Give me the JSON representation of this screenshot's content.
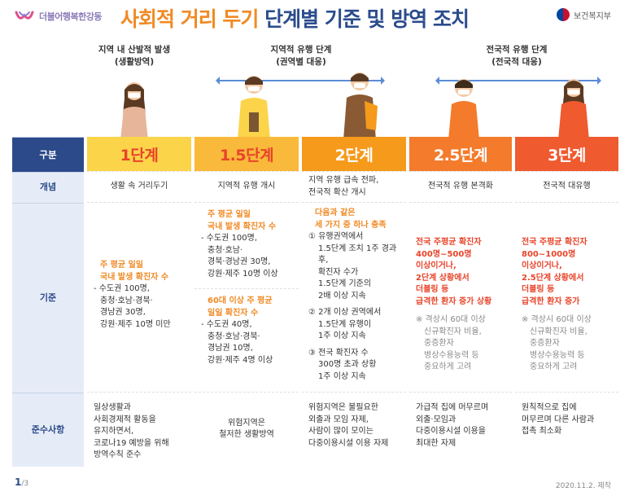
{
  "header": {
    "logo_text": "더불어행복한강동",
    "title_main": "사회적 거리 두기",
    "title_sub": "단계별 기준 및 방역 조치",
    "ministry": "보건복지부"
  },
  "phases": {
    "p1_line1": "지역 내 산발적 발생",
    "p1_line2": "(생활방역)",
    "p2_line1": "지역적 유행 단계",
    "p2_line2": "(권역별 대응)",
    "p3_line1": "전국적 유행 단계",
    "p3_line2": "(전국적 대응)"
  },
  "row_headers": {
    "corner": "구분",
    "concept": "개념",
    "criteria": "기준",
    "compliance": "준수사항"
  },
  "stages": [
    {
      "name": "1단계",
      "color": "#fbd44a",
      "concept": "생활 속 거리두기",
      "criteria": {
        "hl1": "주 평균 일일",
        "hl2": "국내 발생 확진자 수",
        "d1": "- 수도권 100명,",
        "d2": "충청·호남·경북·",
        "d3": "경남권 30명,",
        "d4": "강원·제주 10명 미만"
      },
      "compliance": [
        "일상생활과",
        "사회경제적 활동을",
        "유지하면서,",
        "코로나19 예방을 위해",
        "방역수칙 준수"
      ]
    },
    {
      "name": "1.5단계",
      "color": "#f9b93a",
      "concept": "지역적 유행 개시",
      "criteria": {
        "a_hl1": "주 평균 일일",
        "a_hl2": "국내 발생 확진자 수",
        "a_d1": "- 수도권 100명,",
        "a_d2": "충청·호남·",
        "a_d3": "경북·경남권 30명,",
        "a_d4": "강원·제주 10명 이상",
        "b_hl1": "60대 이상 주 평균",
        "b_hl2": "일일 확진자 수",
        "b_d1": "- 수도권 40명,",
        "b_d2": "충청·호남·경북·",
        "b_d3": "경남권 10명,",
        "b_d4": "강원·제주 4명 이상"
      },
      "compliance": [
        "위험지역은",
        "철저한 생활방역"
      ]
    },
    {
      "name": "2단계",
      "color": "#f59a1b",
      "concept_1": "지역 유행 급속 전파,",
      "concept_2": "전국적 확산 개시",
      "criteria": {
        "hl1": "다음과 같은",
        "hl2": "세 가지 중 하나 충족",
        "c1_1": "① 유행권역에서",
        "c1_2": "1.5단계 조치 1주 경과 후,",
        "c1_3": "확진자 수가",
        "c1_4": "1.5단계 기준의",
        "c1_5": "2배 이상 지속",
        "c2_1": "② 2개 이상 권역에서",
        "c2_2": "1.5단계 유행이",
        "c2_3": "1주 이상 지속",
        "c3_1": "③ 전국 확진자 수",
        "c3_2": "300명 초과 상황",
        "c3_3": "1주 이상 지속"
      },
      "compliance": [
        "위험지역은 불필요한",
        "외출과 모임 자제,",
        "사람이 많이 모이는",
        "다중이용시설 이용 자제"
      ]
    },
    {
      "name": "2.5단계",
      "color": "#f47b2b",
      "concept": "전국적 유행 본격화",
      "criteria": {
        "hl1": "전국 주평균 확진자",
        "hl2": "400명~500명",
        "hl3": "이상이거나,",
        "hl4": "2단계 상황에서",
        "hl5": "더블링 등",
        "hl6": "급격한 환자 증가 상황",
        "g1": "※ 격상시 60대 이상",
        "g2": "신규확진자 비율,",
        "g3": "중증환자",
        "g4": "병상수용능력 등",
        "g5": "중요하게 고려"
      },
      "compliance": [
        "가급적 집에 머무르며",
        "외출·모임과",
        "다중이용시설 이용을",
        "최대한 자제"
      ]
    },
    {
      "name": "3단계",
      "color": "#ef5a2f",
      "concept": "전국적 대유행",
      "criteria": {
        "hl1": "전국 주평균 확진자",
        "hl2": "800~1000명",
        "hl3": "이상이거나,",
        "hl4": "2.5단계 상황에서",
        "hl5": "더블링 등",
        "hl6": "급격한 환자 증가",
        "g1": "※ 격상시 60대 이상",
        "g2": "신규확진자 비율,",
        "g3": "중증환자",
        "g4": "병상수용능력 등",
        "g5": "중요하게 고려"
      },
      "compliance": [
        "원칙적으로 집에",
        "머무르며 다른 사람과",
        "접촉 최소화"
      ]
    }
  ],
  "footer": {
    "page": "1",
    "total": "/3",
    "date": "2020.11.2. 제작"
  }
}
